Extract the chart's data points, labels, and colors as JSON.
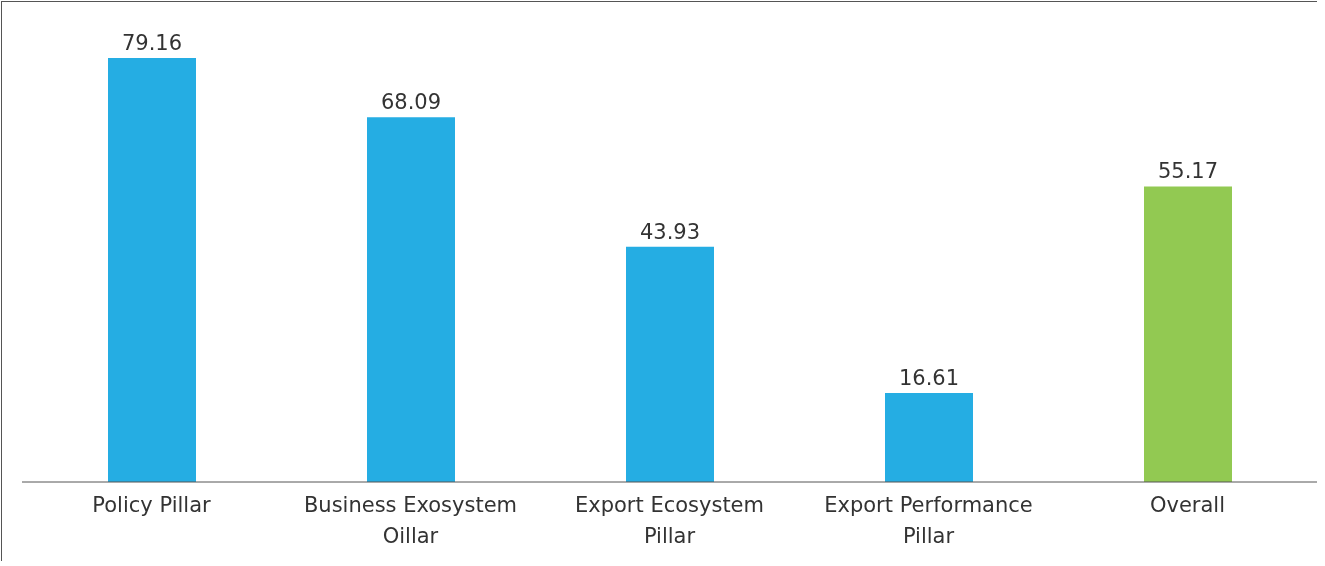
{
  "chart_data": {
    "type": "bar",
    "categories": [
      "Policy Pillar",
      "Business Exosystem Oillar",
      "Export Ecosystem Pillar",
      "Export Performance Pillar",
      "Overall"
    ],
    "values": [
      79.16,
      68.09,
      43.93,
      16.61,
      55.17
    ],
    "colors": [
      "#25ade3",
      "#25ade3",
      "#25ade3",
      "#25ade3",
      "#92c952"
    ],
    "data_labels": true,
    "grid": false,
    "legend": false
  }
}
